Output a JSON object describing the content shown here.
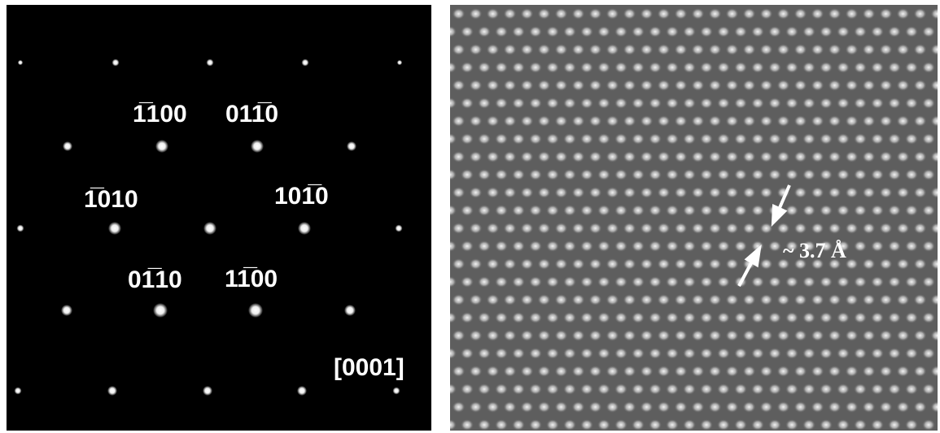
{
  "left_panel": {
    "labels": [
      "1̅100",
      "011̅0",
      "1̅010",
      "101̅0",
      "01̅10",
      "11̅00"
    ],
    "zone_axis": "[0001]"
  },
  "right_panel": {
    "spacing_label": "~ 3.7 Å"
  }
}
